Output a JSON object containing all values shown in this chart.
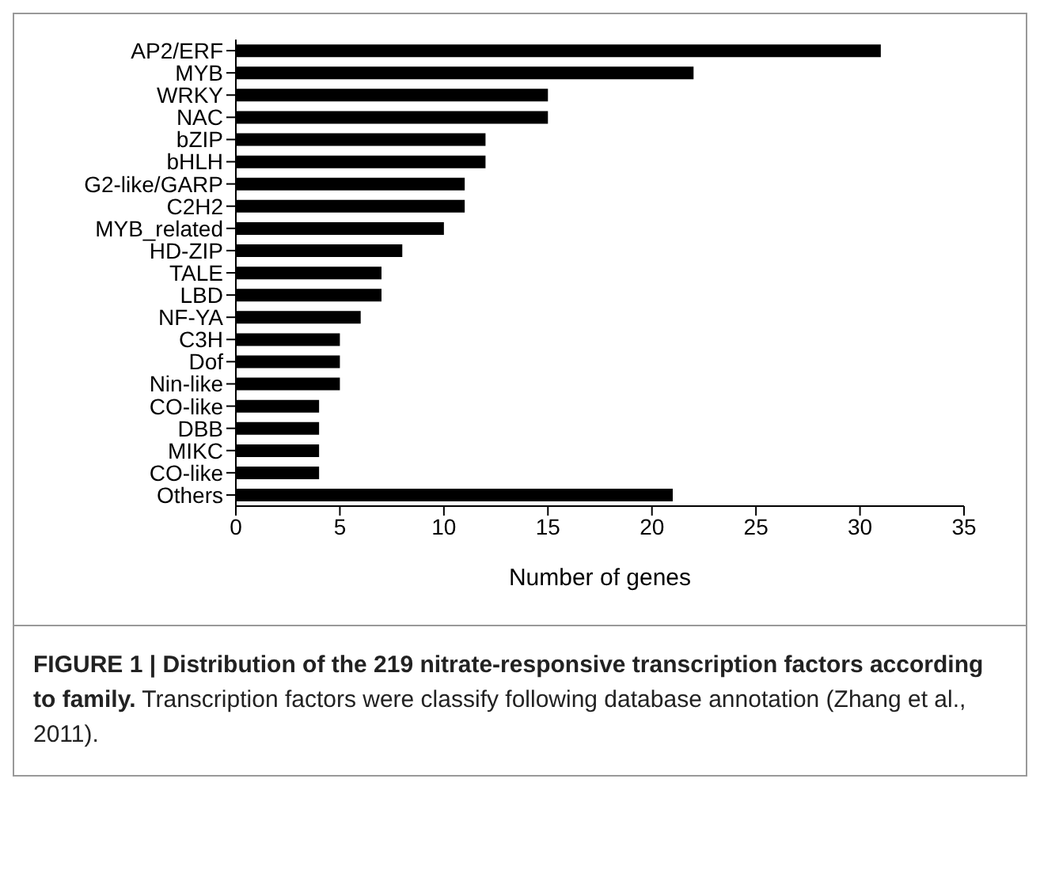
{
  "chart_data": {
    "type": "bar",
    "orientation": "horizontal",
    "title": "FIGURE 1 | Distribution of the 219 nitrate-responsive transcription factors according to family.",
    "annotations": [
      "Transcription factors were classify following database annotation (Zhang et al., 2011)."
    ],
    "xlabel": "Number of genes",
    "categories": [
      "AP2/ERF",
      "MYB",
      "WRKY",
      "NAC",
      "bZIP",
      "bHLH",
      "G2-like/GARP",
      "C2H2",
      "MYB_related",
      "HD-ZIP",
      "TALE",
      "LBD",
      "NF-YA",
      "C3H",
      "Dof",
      "Nin-like",
      "CO-like",
      "DBB",
      "MIKC",
      "CO-like",
      "Others"
    ],
    "values": [
      31,
      22,
      15,
      15,
      12,
      12,
      11,
      11,
      10,
      8,
      7,
      7,
      6,
      5,
      5,
      5,
      4,
      4,
      4,
      4,
      21
    ],
    "color": "#000000",
    "xlim": [
      0,
      35
    ],
    "xticks": [
      0,
      5,
      10,
      15,
      20,
      25,
      30,
      35
    ]
  }
}
